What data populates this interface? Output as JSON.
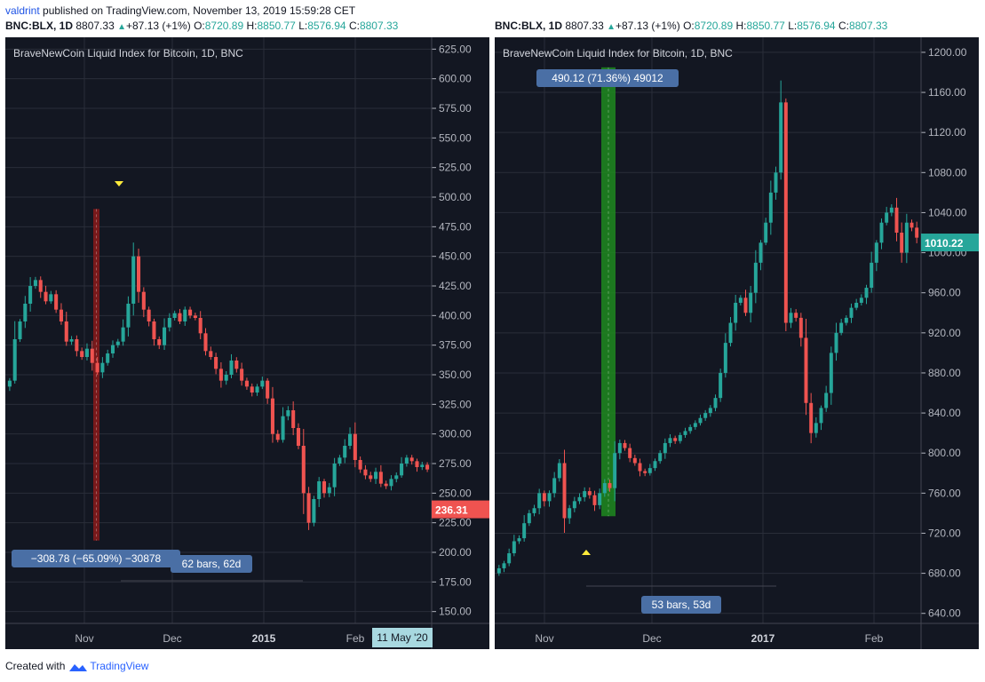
{
  "header": {
    "username": "valdrint",
    "published_text": "published on TradingView.com, November 13, 2019 15:59:28 CET"
  },
  "footer": {
    "created_with": "Created with",
    "brand": "TradingView"
  },
  "colors": {
    "bg": "#131722",
    "up": "#26a69a",
    "down": "#ef5350",
    "grid": "#2a2e39"
  },
  "left_chart": {
    "ohlc_line": {
      "symbol": "BNC:BLX, 1D",
      "last": "8807.33",
      "change": "+87.13 (+1%)",
      "o_label": "O:",
      "o": "8720.89",
      "h_label": "H:",
      "h": "8850.77",
      "l_label": "L:",
      "l": "8576.94",
      "c_label": "C:",
      "c": "8807.33"
    },
    "legend_title": "BraveNewCoin Liquid Index for Bitcoin, 1D, BNC",
    "price_label": "236.31",
    "date_tag": "11 May '20",
    "measure_label": "−308.78 (−65.09%) −30878",
    "bars_label": "62 bars, 62d",
    "y_ticks": [
      "625.00",
      "600.00",
      "575.00",
      "550.00",
      "525.00",
      "500.00",
      "475.00",
      "450.00",
      "425.00",
      "400.00",
      "375.00",
      "350.00",
      "325.00",
      "300.00",
      "275.00",
      "250.00",
      "225.00",
      "200.00",
      "175.00",
      "150.00"
    ],
    "x_ticks": [
      "Nov",
      "Dec",
      "2015",
      "Feb"
    ]
  },
  "right_chart": {
    "ohlc_line": {
      "symbol": "BNC:BLX, 1D",
      "last": "8807.33",
      "change": "+87.13 (+1%)",
      "o_label": "O:",
      "o": "8720.89",
      "h_label": "H:",
      "h": "8850.77",
      "l_label": "L:",
      "l": "8576.94",
      "c_label": "C:",
      "c": "8807.33"
    },
    "legend_title": "BraveNewCoin Liquid Index for Bitcoin, 1D, BNC",
    "price_label": "1010.22",
    "measure_label": "490.12 (71.36%) 49012",
    "bars_label": "53 bars, 53d",
    "y_ticks": [
      "1200.00",
      "1160.00",
      "1120.00",
      "1080.00",
      "1040.00",
      "1000.00",
      "960.00",
      "920.00",
      "880.00",
      "840.00",
      "800.00",
      "760.00",
      "720.00",
      "680.00",
      "640.00"
    ],
    "x_ticks": [
      "Nov",
      "Dec",
      "2017",
      "Feb"
    ]
  },
  "chart_data": [
    {
      "type": "candlestick",
      "title": "BraveNewCoin Liquid Index for Bitcoin, 1D, BNC",
      "ylim": [
        140,
        635
      ],
      "x_ticks": [
        "Nov",
        "Dec",
        "2015",
        "Feb"
      ],
      "range_measure": {
        "change": -308.78,
        "percent": -65.09,
        "bars": 62
      },
      "closes": [
        345,
        380,
        395,
        410,
        425,
        430,
        420,
        412,
        418,
        405,
        395,
        378,
        380,
        370,
        365,
        372,
        360,
        352,
        360,
        368,
        375,
        378,
        390,
        410,
        450,
        420,
        405,
        395,
        380,
        375,
        390,
        398,
        402,
        395,
        405,
        400,
        398,
        385,
        370,
        365,
        355,
        345,
        350,
        362,
        355,
        345,
        340,
        335,
        340,
        345,
        330,
        300,
        295,
        315,
        320,
        305,
        290,
        250,
        225,
        245,
        260,
        250,
        255,
        275,
        280,
        290,
        300,
        278,
        270,
        265,
        262,
        268,
        258,
        256,
        262,
        265,
        275,
        280,
        277,
        272,
        274,
        270
      ]
    },
    {
      "type": "candlestick",
      "title": "BraveNewCoin Liquid Index for Bitcoin, 1D, BNC",
      "ylim": [
        630,
        1215
      ],
      "x_ticks": [
        "Nov",
        "Dec",
        "2017",
        "Feb"
      ],
      "range_measure": {
        "change": 490.12,
        "percent": 71.36,
        "bars": 53
      },
      "closes": [
        685,
        690,
        700,
        712,
        715,
        730,
        740,
        745,
        760,
        752,
        760,
        775,
        790,
        735,
        745,
        752,
        756,
        762,
        758,
        748,
        760,
        770,
        765,
        800,
        810,
        805,
        795,
        790,
        782,
        780,
        785,
        792,
        800,
        810,
        815,
        812,
        818,
        822,
        826,
        830,
        835,
        840,
        845,
        855,
        880,
        910,
        930,
        950,
        955,
        940,
        960,
        990,
        1010,
        1030,
        1060,
        1080,
        1150,
        930,
        940,
        935,
        915,
        850,
        820,
        830,
        845,
        860,
        900,
        920,
        930,
        935,
        945,
        950,
        955,
        965,
        990,
        1010,
        1030,
        1040,
        1045,
        1020,
        1000,
        1030,
        1025,
        1015
      ]
    }
  ]
}
